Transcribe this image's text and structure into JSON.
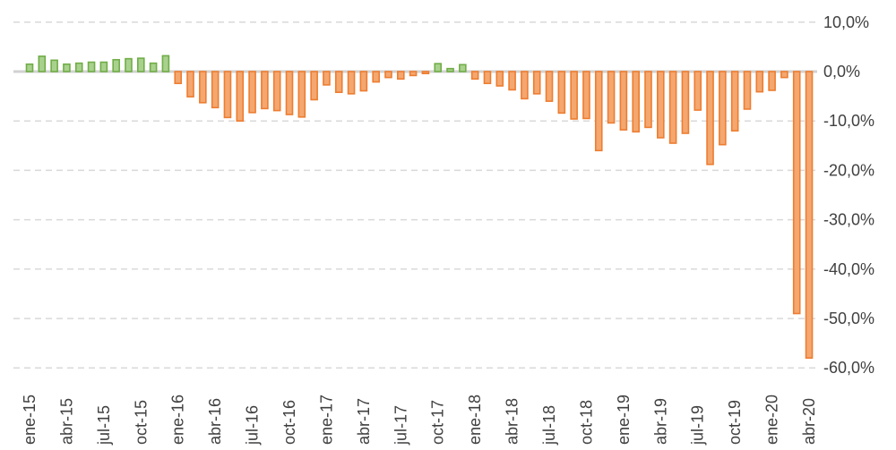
{
  "chart_data": {
    "type": "bar",
    "title": "",
    "xlabel": "",
    "ylabel": "",
    "legend": "none",
    "grid": "horizontal-dashed",
    "y_axis_side": "right",
    "ylim": [
      -60,
      10
    ],
    "y_step": 10,
    "y_tick_labels": [
      "10,0%",
      "0,0%",
      "-10,0%",
      "-20,0%",
      "-30,0%",
      "-40,0%",
      "-50,0%",
      "-60,0%"
    ],
    "x_tick_labels": [
      "ene-15",
      "abr-15",
      "jul-15",
      "oct-15",
      "ene-16",
      "abr-16",
      "jul-16",
      "oct-16",
      "ene-17",
      "abr-17",
      "jul-17",
      "oct-17",
      "ene-18",
      "abr-18",
      "jul-18",
      "oct-18",
      "ene-19",
      "abr-19",
      "jul-19",
      "oct-19",
      "ene-20",
      "abr-20"
    ],
    "x_tick_every": 3,
    "categories": [
      "ene-15",
      "feb-15",
      "mar-15",
      "abr-15",
      "may-15",
      "jun-15",
      "jul-15",
      "ago-15",
      "sep-15",
      "oct-15",
      "nov-15",
      "dic-15",
      "ene-16",
      "feb-16",
      "mar-16",
      "abr-16",
      "may-16",
      "jun-16",
      "jul-16",
      "ago-16",
      "sep-16",
      "oct-16",
      "nov-16",
      "dic-16",
      "ene-17",
      "feb-17",
      "mar-17",
      "abr-17",
      "may-17",
      "jun-17",
      "jul-17",
      "ago-17",
      "sep-17",
      "oct-17",
      "nov-17",
      "dic-17",
      "ene-18",
      "feb-18",
      "mar-18",
      "abr-18",
      "may-18",
      "jun-18",
      "jul-18",
      "ago-18",
      "sep-18",
      "oct-18",
      "nov-18",
      "dic-18",
      "ene-19",
      "feb-19",
      "mar-19",
      "abr-19",
      "may-19",
      "jun-19",
      "jul-19",
      "ago-19",
      "sep-19",
      "oct-19",
      "nov-19",
      "dic-19",
      "ene-20",
      "feb-20",
      "mar-20",
      "abr-20"
    ],
    "values": [
      1.5,
      3.1,
      2.3,
      1.5,
      1.7,
      1.9,
      1.9,
      2.4,
      2.6,
      2.7,
      1.7,
      3.2,
      -2.4,
      -5.1,
      -6.3,
      -7.3,
      -9.3,
      -10.0,
      -8.3,
      -7.5,
      -7.9,
      -8.7,
      -9.2,
      -5.7,
      -2.7,
      -4.2,
      -4.5,
      -3.9,
      -2.1,
      -1.2,
      -1.5,
      -0.8,
      -0.4,
      1.6,
      0.6,
      1.4,
      -1.5,
      -2.4,
      -2.9,
      -3.7,
      -5.5,
      -4.5,
      -6.0,
      -8.4,
      -9.6,
      -9.5,
      -16.0,
      -10.4,
      -11.8,
      -12.2,
      -11.3,
      -13.4,
      -14.5,
      -12.5,
      -7.8,
      -18.8,
      -14.8,
      -12.0,
      -7.6,
      -4.1,
      -3.8,
      -1.2,
      -49.0,
      -58.0
    ],
    "colors": {
      "positive_fill": "#A9D18E",
      "positive_border": "#70AD47",
      "negative_fill": "#F4A76F",
      "negative_border": "#ED7D31",
      "gridline": "#D9D9D9",
      "zero_axis_line": "#D2D2D2",
      "tick_label_color": "#404040"
    }
  }
}
